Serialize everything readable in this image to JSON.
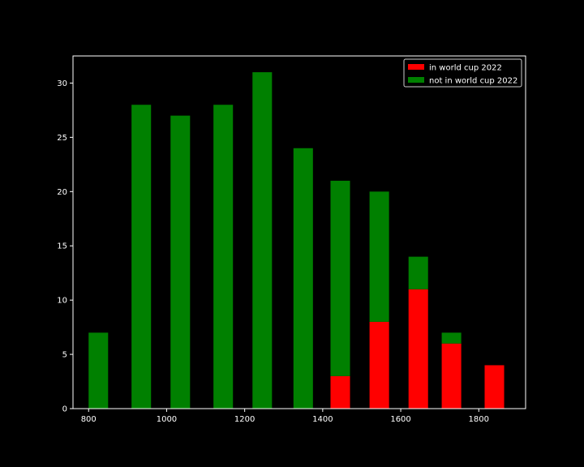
{
  "chart_data": {
    "type": "bar",
    "stacked": true,
    "title": "",
    "xlabel": "",
    "ylabel": "",
    "bar_width": 50,
    "x": [
      825,
      935,
      1035,
      1145,
      1245,
      1350,
      1445,
      1545,
      1645,
      1730,
      1840
    ],
    "series": [
      {
        "name": "in world cup 2022",
        "color": "#ff0000",
        "values": [
          0,
          0,
          0,
          0,
          0,
          0,
          3,
          8,
          11,
          6,
          4
        ]
      },
      {
        "name": "not in world cup 2022",
        "color": "#008000",
        "values": [
          7,
          28,
          27,
          28,
          31,
          24,
          18,
          12,
          3,
          1,
          0
        ]
      }
    ],
    "xlim": [
      760,
      1920
    ],
    "ylim": [
      0,
      32.5
    ],
    "xticks": [
      800,
      1000,
      1200,
      1400,
      1600,
      1800
    ],
    "yticks": [
      0,
      5,
      10,
      15,
      20,
      25,
      30
    ],
    "grid": false,
    "legend": {
      "placement": "top-right"
    },
    "background": "#000000",
    "axis_color": "#ffffff"
  }
}
